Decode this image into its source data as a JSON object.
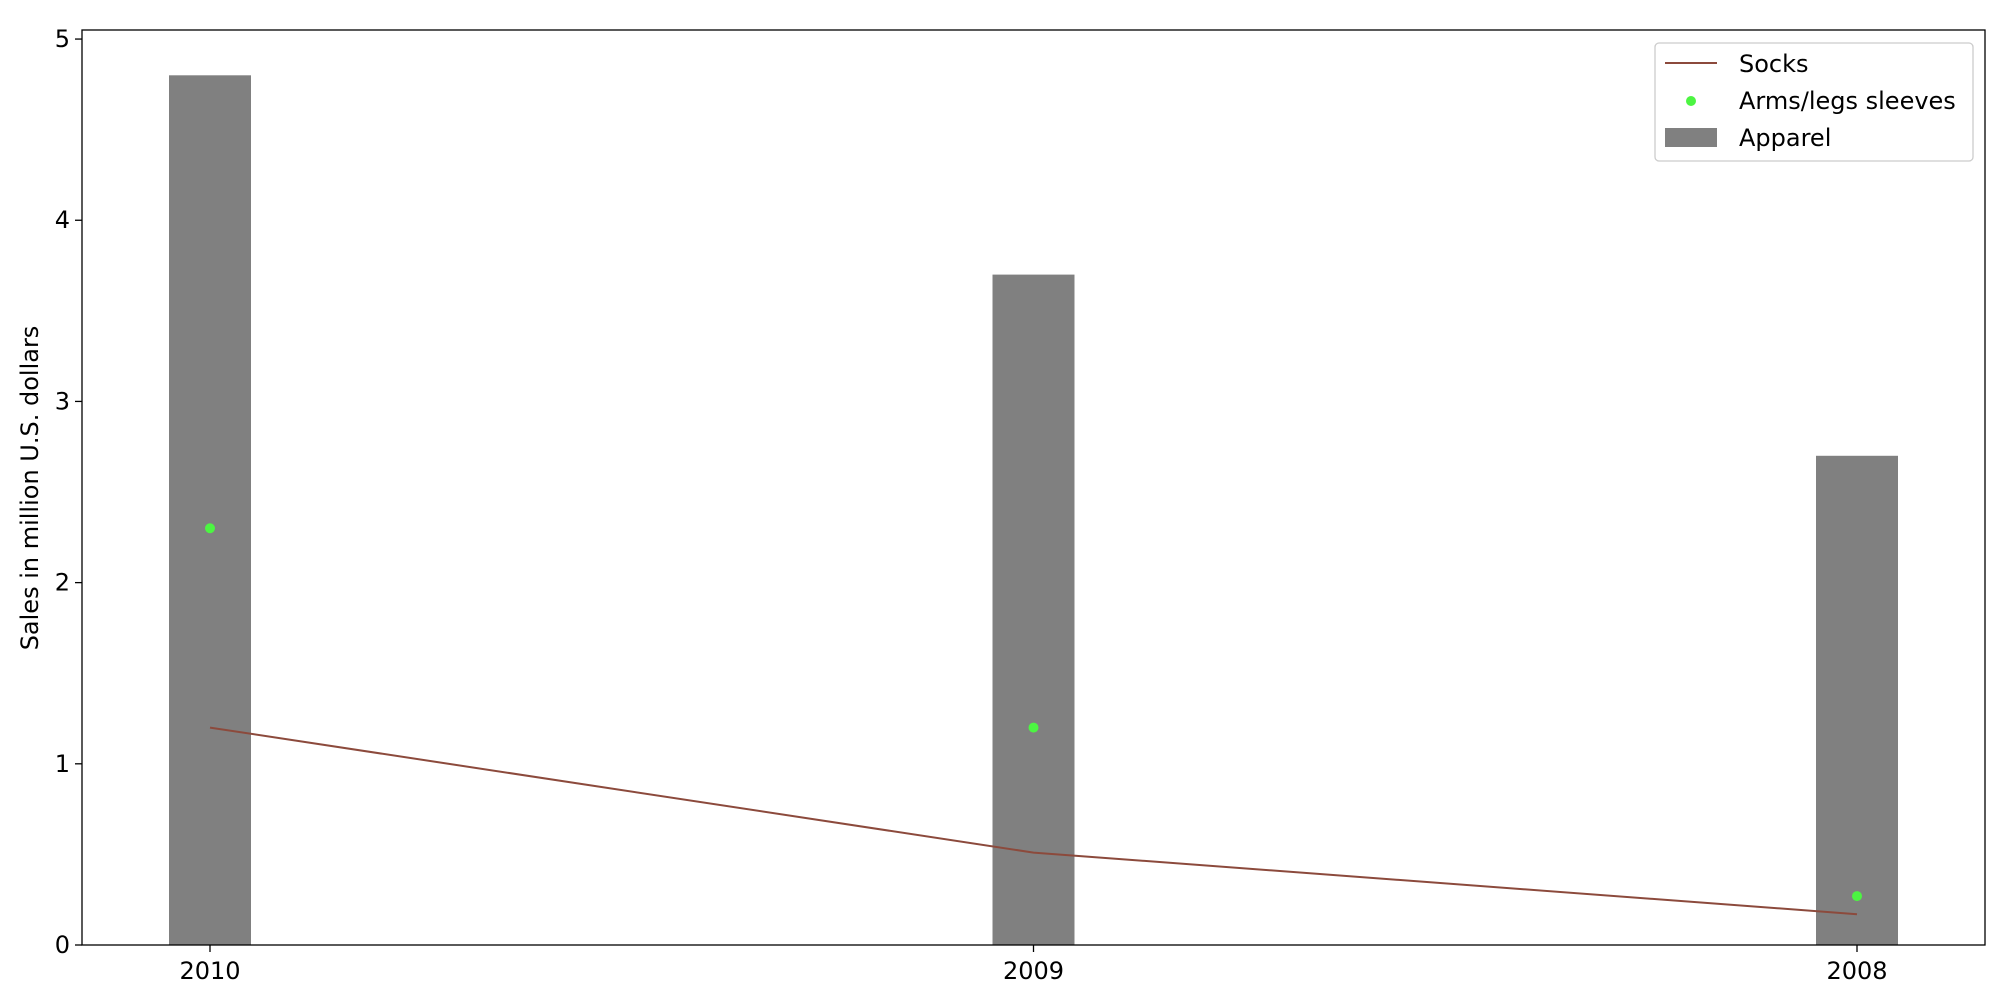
{
  "chart_data": {
    "type": "bar",
    "categories": [
      "2010",
      "2009",
      "2008"
    ],
    "ylabel": "Sales in million U.S. dollars",
    "xlabel": "",
    "ylim": [
      0,
      5.05
    ],
    "yticks": [
      0,
      1,
      2,
      3,
      4,
      5
    ],
    "grid": false,
    "legend_position": "top-right",
    "series": [
      {
        "name": "Apparel",
        "kind": "bar",
        "color": "#808080",
        "values": [
          4.8,
          3.7,
          2.7
        ]
      },
      {
        "name": "Socks",
        "kind": "line",
        "color": "#8c4a3c",
        "values": [
          1.2,
          0.51,
          0.17
        ]
      },
      {
        "name": "Arms/legs sleeves",
        "kind": "scatter",
        "color": "#4cf542",
        "values": [
          2.3,
          1.2,
          0.27
        ]
      }
    ],
    "legend_order": [
      "Socks",
      "Arms/legs sleeves",
      "Apparel"
    ]
  }
}
